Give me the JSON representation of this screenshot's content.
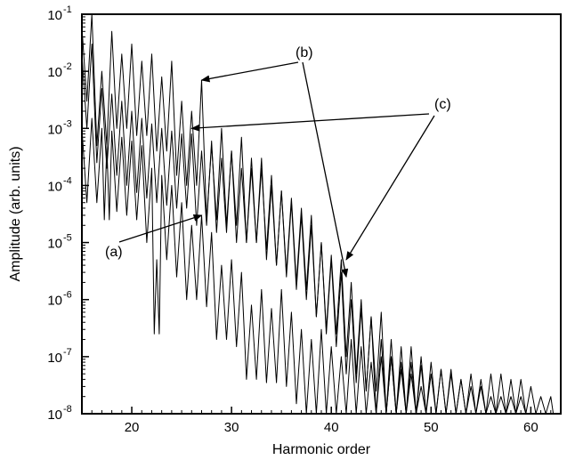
{
  "chart_data": {
    "type": "line",
    "title": "",
    "xlabel": "Harmonic order",
    "ylabel": "Amplitude (arb. units)",
    "xlim": [
      15,
      63
    ],
    "ylim_exponent": [
      -8,
      -1
    ],
    "log_y": true,
    "grid": false,
    "x_ticks": [
      "20",
      "30",
      "40",
      "50",
      "60"
    ],
    "y_ticks": [
      {
        "base": "10",
        "exp": "-1"
      },
      {
        "base": "10",
        "exp": "-2"
      },
      {
        "base": "10",
        "exp": "-3"
      },
      {
        "base": "10",
        "exp": "-4"
      },
      {
        "base": "10",
        "exp": "-5"
      },
      {
        "base": "10",
        "exp": "-6"
      },
      {
        "base": "10",
        "exp": "-7"
      },
      {
        "base": "10",
        "exp": "-8"
      }
    ],
    "series": [
      {
        "label": "(a)",
        "x": [
          15,
          16,
          17,
          17.5,
          18,
          19,
          20,
          21,
          22,
          22.5,
          23,
          24,
          25,
          26,
          27,
          28,
          29,
          30,
          31,
          32,
          33,
          34,
          35,
          36,
          37,
          38,
          39,
          40,
          41,
          42,
          43,
          44,
          45,
          46,
          47,
          48,
          49,
          50,
          51,
          52,
          53,
          54,
          55,
          56,
          57,
          58,
          59,
          60,
          61,
          62,
          62.5
        ],
        "y": [
          0.001,
          0.0015,
          0.001,
          0.0005,
          0.0009,
          0.0007,
          0.0006,
          0.0005,
          0.0002,
          5e-06,
          0.00015,
          0.0001,
          5e-05,
          2e-05,
          3e-05,
          1.5e-05,
          4e-06,
          5e-06,
          3e-06,
          8e-07,
          1.5e-06,
          7e-07,
          1.5e-06,
          6e-07,
          3e-07,
          2e-07,
          3e-07,
          1.5e-07,
          1e-07,
          2e-07,
          1.5e-07,
          8e-08,
          1e-07,
          1e-07,
          6e-08,
          8e-08,
          7e-08,
          5e-08,
          6e-08,
          6e-08,
          4e-08,
          5e-08,
          4e-08,
          5e-08,
          5e-08,
          4e-08,
          4e-08,
          3e-08,
          2e-08,
          2e-08,
          1e-08
        ]
      },
      {
        "label": "(b)",
        "x": [
          15,
          16,
          17,
          18,
          19,
          20,
          21,
          22,
          23,
          24,
          25,
          26,
          27,
          28,
          29,
          30,
          31,
          32,
          33,
          34,
          35,
          36,
          37,
          38,
          39,
          40,
          41,
          42,
          43,
          44,
          45,
          46,
          47,
          48,
          49,
          50
        ],
        "y": [
          0.06,
          0.1,
          0.01,
          0.05,
          0.02,
          0.03,
          0.015,
          0.02,
          0.008,
          0.015,
          0.003,
          0.002,
          0.007,
          0.0005,
          0.001,
          0.0004,
          0.0007,
          0.0002,
          0.0003,
          0.0001,
          8e-05,
          5e-05,
          3e-05,
          2e-05,
          1e-05,
          5e-06,
          3e-06,
          1e-06,
          7e-07,
          5e-07,
          2e-07,
          1e-07,
          8e-08,
          5e-08,
          3e-08,
          1e-08
        ]
      },
      {
        "label": "(c)",
        "x": [
          15,
          16,
          17,
          18,
          19,
          20,
          21,
          22,
          23,
          24,
          25,
          26,
          27,
          28,
          29,
          30,
          31,
          32,
          33,
          34,
          35,
          36,
          37,
          38,
          39,
          40,
          41,
          42,
          43,
          44,
          45,
          46,
          47,
          48,
          49,
          50,
          51,
          52,
          53,
          54,
          55,
          56,
          57,
          58,
          59,
          60
        ],
        "y": [
          0.02,
          0.03,
          0.005,
          0.004,
          0.003,
          0.002,
          0.0015,
          0.0012,
          0.001,
          0.0009,
          0.0008,
          0.0008,
          0.0004,
          0.0006,
          0.0003,
          0.0004,
          0.0002,
          0.0003,
          0.0002,
          0.00015,
          8e-05,
          6e-05,
          4e-05,
          3e-05,
          1e-05,
          6e-06,
          5e-06,
          2e-06,
          1e-06,
          5e-07,
          6e-07,
          2e-07,
          1.5e-07,
          1.5e-07,
          1e-07,
          8e-08,
          6e-08,
          5e-08,
          4e-08,
          3e-08,
          3e-08,
          2e-08,
          2e-08,
          2e-08,
          2e-08,
          1e-08
        ]
      }
    ],
    "annotations": [
      {
        "text": "(a)",
        "target_x": 27,
        "target_y": 3e-05
      },
      {
        "text": "(b)",
        "target_x": 27,
        "target_y": 0.007
      },
      {
        "text": "(b)",
        "target_x": 41.5,
        "target_y": 2.5e-06
      },
      {
        "text": "(c)",
        "target_x": 26,
        "target_y": 0.001
      },
      {
        "text": "(c)",
        "target_x": 41.5,
        "target_y": 5e-06
      }
    ]
  }
}
